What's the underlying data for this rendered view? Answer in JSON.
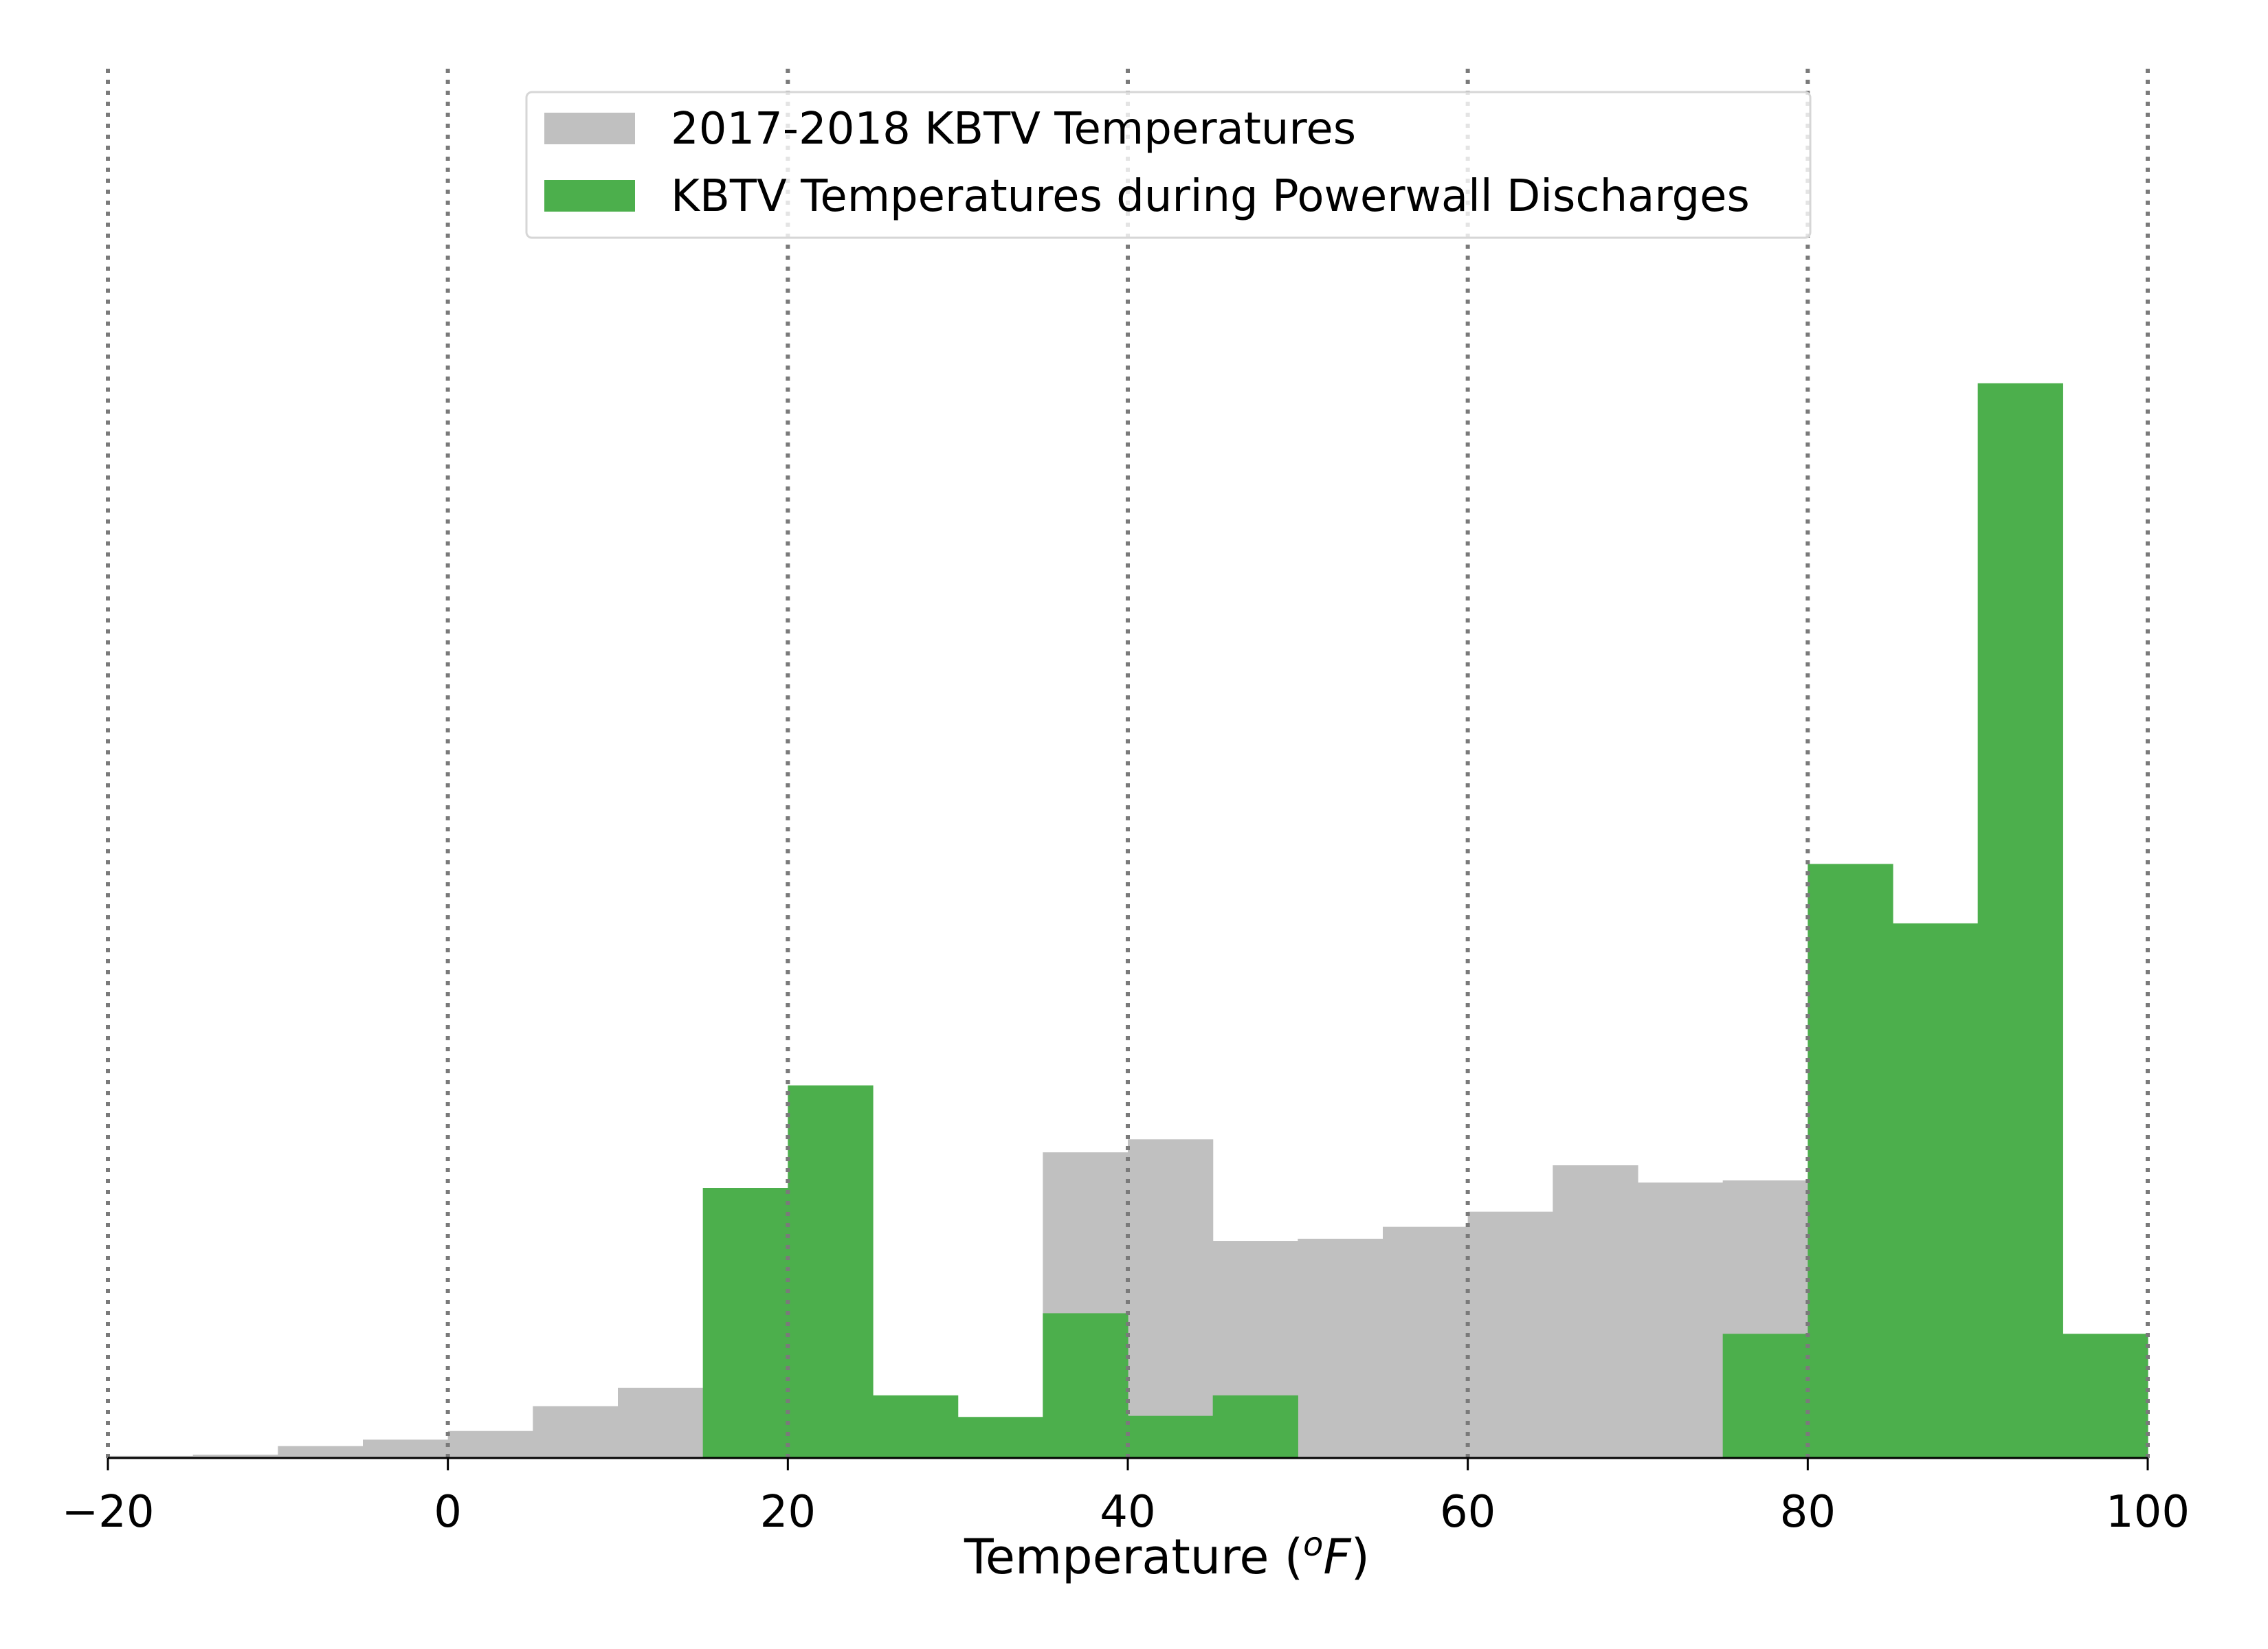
{
  "chart_data": {
    "type": "bar",
    "xlabel": "Temperature (",
    "xlabel_sup": "o",
    "xlabel_unit": "F",
    "xlabel_close": ")",
    "ylabel": "",
    "xlim": [
      -20,
      100
    ],
    "xticks": [
      -20,
      0,
      20,
      40,
      60,
      80,
      100
    ],
    "xtick_labels": [
      "−20",
      "0",
      "20",
      "40",
      "60",
      "80",
      "100"
    ],
    "grid": "vertical dotted lines at x ticks",
    "y_axis_shown": false,
    "legend_position": "top-center",
    "bin_edges": [
      -20,
      -15,
      -10,
      -5,
      0,
      5,
      10,
      15,
      20,
      25,
      30,
      35,
      40,
      45,
      50,
      55,
      60,
      65,
      70,
      75,
      80,
      85,
      90,
      95,
      100
    ],
    "ylim": [
      0,
      1.0
    ],
    "series": [
      {
        "name": "2017-2018 KBTV Temperatures",
        "color": "#c0c0c0",
        "values": [
          0.002,
          0.003,
          0.011,
          0.017,
          0.025,
          0.048,
          0.065,
          0.043,
          0.0,
          0.0,
          0.0,
          0.283,
          0.295,
          0.201,
          0.203,
          0.214,
          0.228,
          0.271,
          0.255,
          0.257,
          0.192,
          0.0,
          0.0,
          0.0
        ]
      },
      {
        "name": "KBTV Temperatures during Powerwall Discharges",
        "color": "#4caf4c",
        "values": [
          0,
          0,
          0,
          0,
          0,
          0,
          0,
          0.25,
          0.345,
          0.058,
          0.038,
          0.134,
          0.039,
          0.058,
          0,
          0,
          0,
          0,
          0,
          0.115,
          0.55,
          0.495,
          0.995,
          0.115
        ]
      }
    ]
  }
}
